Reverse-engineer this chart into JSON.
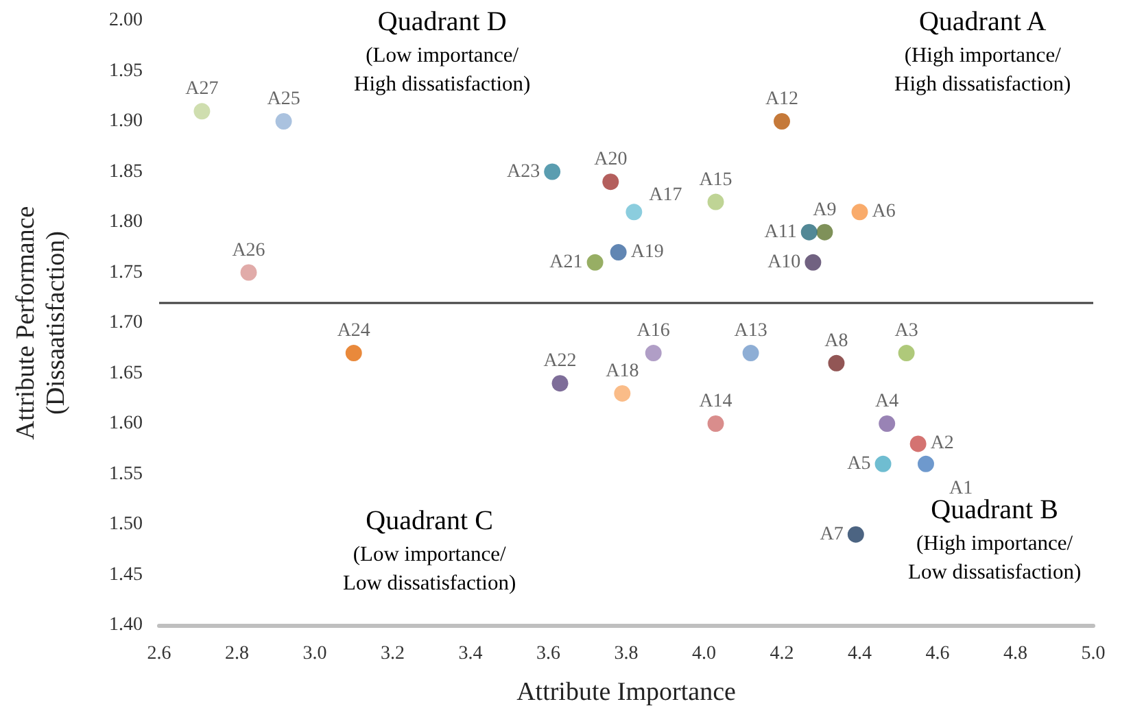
{
  "chart_data": {
    "type": "scatter",
    "xlabel": "Attribute Importance",
    "ylabel": "Attribute Performance\n(Dissaatisfaction)",
    "xlim": [
      2.6,
      5.0
    ],
    "xticks": [
      {
        "value": 2.6,
        "label": "2.6"
      },
      {
        "value": 2.8,
        "label": "2.8"
      },
      {
        "value": 3.0,
        "label": "3.0"
      },
      {
        "value": 3.2,
        "label": "3.2"
      },
      {
        "value": 3.4,
        "label": "3.4"
      },
      {
        "value": 3.6,
        "label": "3.6"
      },
      {
        "value": 3.8,
        "label": "3.8"
      },
      {
        "value": 4.0,
        "label": "4.0"
      },
      {
        "value": 4.2,
        "label": "4.2"
      },
      {
        "value": 4.4,
        "label": "4.4"
      },
      {
        "value": 4.6,
        "label": "4.6"
      },
      {
        "value": 4.8,
        "label": "4.8"
      },
      {
        "value": 5.0,
        "label": "5.0"
      }
    ],
    "ylim": [
      1.4,
      2.0
    ],
    "yticks": [
      {
        "value": 1.4,
        "label": "1.40"
      },
      {
        "value": 1.45,
        "label": "1.45"
      },
      {
        "value": 1.5,
        "label": "1.50"
      },
      {
        "value": 1.55,
        "label": "1.55"
      },
      {
        "value": 1.6,
        "label": "1.60"
      },
      {
        "value": 1.65,
        "label": "1.65"
      },
      {
        "value": 1.7,
        "label": "1.70"
      },
      {
        "value": 1.75,
        "label": "1.75"
      },
      {
        "value": 1.8,
        "label": "1.80"
      },
      {
        "value": 1.85,
        "label": "1.85"
      },
      {
        "value": 1.9,
        "label": "1.90"
      },
      {
        "value": 1.95,
        "label": "1.95"
      },
      {
        "value": 2.0,
        "label": "2.00"
      }
    ],
    "grid": false,
    "legend": false,
    "marker": "circle",
    "ref_lines": [
      {
        "axis": "y",
        "value": 1.72,
        "color": "#404040"
      }
    ],
    "annotations": [
      "Quadrant A\n(High importance/\nHigh dissatisfaction)",
      "Quadrant B\n(High importance/\nLow dissatisfaction)",
      "Quadrant C\n(Low importance/\nLow dissatisfaction)",
      "Quadrant D\n(Low importance/\nHigh dissatisfaction)"
    ],
    "series": [
      {
        "name": "A1",
        "color": "#4a7fc1",
        "x": [
          4.57
        ],
        "values": [
          1.56
        ]
      },
      {
        "name": "A2",
        "color": "#c9504e",
        "x": [
          4.55
        ],
        "values": [
          1.58
        ]
      },
      {
        "name": "A3",
        "color": "#9bbb59",
        "x": [
          4.52
        ],
        "values": [
          1.67
        ]
      },
      {
        "name": "A4",
        "color": "#8064a2",
        "x": [
          4.47
        ],
        "values": [
          1.6
        ]
      },
      {
        "name": "A5",
        "color": "#4bacc6",
        "x": [
          4.46
        ],
        "values": [
          1.56
        ]
      },
      {
        "name": "A6",
        "color": "#f79646",
        "x": [
          4.4
        ],
        "values": [
          1.81
        ]
      },
      {
        "name": "A7",
        "color": "#1f3d63",
        "x": [
          4.39
        ],
        "values": [
          1.49
        ]
      },
      {
        "name": "A8",
        "color": "#772c2a",
        "x": [
          4.34
        ],
        "values": [
          1.66
        ]
      },
      {
        "name": "A9",
        "color": "#5f7530",
        "x": [
          4.31
        ],
        "values": [
          1.79
        ]
      },
      {
        "name": "A10",
        "color": "#4d3b62",
        "x": [
          4.28
        ],
        "values": [
          1.76
        ]
      },
      {
        "name": "A11",
        "color": "#276a7c",
        "x": [
          4.27
        ],
        "values": [
          1.79
        ]
      },
      {
        "name": "A12",
        "color": "#b65708",
        "x": [
          4.2
        ],
        "values": [
          1.9
        ]
      },
      {
        "name": "A13",
        "color": "#729aca",
        "x": [
          4.12
        ],
        "values": [
          1.67
        ]
      },
      {
        "name": "A14",
        "color": "#d0716f",
        "x": [
          4.03
        ],
        "values": [
          1.6
        ]
      },
      {
        "name": "A15",
        "color": "#afc97a",
        "x": [
          4.03
        ],
        "values": [
          1.82
        ]
      },
      {
        "name": "A16",
        "color": "#9c86b8",
        "x": [
          3.87
        ],
        "values": [
          1.67
        ]
      },
      {
        "name": "A17",
        "color": "#6ec0d6",
        "x": [
          3.82
        ],
        "values": [
          1.81
        ]
      },
      {
        "name": "A18",
        "color": "#f9ab6a",
        "x": [
          3.79
        ],
        "values": [
          1.63
        ]
      },
      {
        "name": "A19",
        "color": "#3a68a0",
        "x": [
          3.78
        ],
        "values": [
          1.77
        ]
      },
      {
        "name": "A20",
        "color": "#a13734",
        "x": [
          3.76
        ],
        "values": [
          1.84
        ]
      },
      {
        "name": "A21",
        "color": "#7d9a3d",
        "x": [
          3.72
        ],
        "values": [
          1.76
        ]
      },
      {
        "name": "A22",
        "color": "#5e4880",
        "x": [
          3.63
        ],
        "values": [
          1.64
        ]
      },
      {
        "name": "A23",
        "color": "#31859c",
        "x": [
          3.61
        ],
        "values": [
          1.85
        ]
      },
      {
        "name": "A24",
        "color": "#e46c0a",
        "x": [
          3.1
        ],
        "values": [
          1.67
        ]
      },
      {
        "name": "A25",
        "color": "#95b3d7",
        "x": [
          2.92
        ],
        "values": [
          1.9
        ]
      },
      {
        "name": "A26",
        "color": "#d99694",
        "x": [
          2.83
        ],
        "values": [
          1.75
        ]
      },
      {
        "name": "A27",
        "color": "#c3d69b",
        "x": [
          2.71
        ],
        "values": [
          1.91
        ]
      }
    ]
  }
}
